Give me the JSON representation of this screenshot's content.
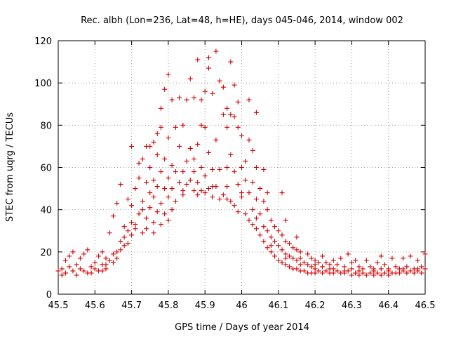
{
  "chart_data": {
    "type": "scatter",
    "title": "Rec. albh (Lon=236, Lat=48, h=HE), days 045-046, 2014, window 002",
    "xlabel": "GPS time / Days of year 2014",
    "ylabel": "STEC from uqrg / TECUs",
    "xlim": [
      45.5,
      46.5
    ],
    "ylim": [
      0,
      120
    ],
    "x_ticks": [
      "45.5",
      "45.6",
      "45.7",
      "45.8",
      "45.9",
      "46",
      "46.1",
      "46.2",
      "46.3",
      "46.4",
      "46.5"
    ],
    "y_ticks": [
      "0",
      "20",
      "40",
      "60",
      "80",
      "100",
      "120"
    ],
    "grid": true,
    "marker": "+",
    "marker_color": "#cc0000",
    "series": [
      {
        "name": "STEC",
        "points": [
          [
            45.5,
            11
          ],
          [
            45.51,
            12
          ],
          [
            45.52,
            10
          ],
          [
            45.52,
            16
          ],
          [
            45.53,
            18
          ],
          [
            45.54,
            11
          ],
          [
            45.54,
            20
          ],
          [
            45.55,
            14
          ],
          [
            45.56,
            17
          ],
          [
            45.57,
            11
          ],
          [
            45.57,
            19
          ],
          [
            45.58,
            21
          ],
          [
            45.59,
            10
          ],
          [
            45.59,
            13
          ],
          [
            45.6,
            15
          ],
          [
            45.61,
            11
          ],
          [
            45.61,
            18
          ],
          [
            45.62,
            14
          ],
          [
            45.62,
            20
          ],
          [
            45.63,
            12
          ],
          [
            45.63,
            17
          ],
          [
            45.64,
            16
          ],
          [
            45.64,
            29
          ],
          [
            45.65,
            19
          ],
          [
            45.65,
            37
          ],
          [
            45.66,
            20
          ],
          [
            45.66,
            43
          ],
          [
            45.67,
            25
          ],
          [
            45.67,
            52
          ],
          [
            45.68,
            23
          ],
          [
            45.68,
            32
          ],
          [
            45.69,
            30
          ],
          [
            45.69,
            45
          ],
          [
            45.7,
            28
          ],
          [
            45.7,
            34
          ],
          [
            45.7,
            42
          ],
          [
            45.7,
            70
          ],
          [
            45.71,
            33
          ],
          [
            45.71,
            50
          ],
          [
            45.72,
            38
          ],
          [
            45.72,
            55
          ],
          [
            45.72,
            62
          ],
          [
            45.73,
            40
          ],
          [
            45.73,
            44
          ],
          [
            45.73,
            64
          ],
          [
            45.74,
            36
          ],
          [
            45.74,
            53
          ],
          [
            45.74,
            70
          ],
          [
            45.75,
            41
          ],
          [
            45.75,
            48
          ],
          [
            45.75,
            60
          ],
          [
            45.75,
            70
          ],
          [
            45.76,
            34
          ],
          [
            45.76,
            46
          ],
          [
            45.76,
            54
          ],
          [
            45.76,
            72
          ],
          [
            45.77,
            39
          ],
          [
            45.77,
            51
          ],
          [
            45.77,
            66
          ],
          [
            45.77,
            76
          ],
          [
            45.78,
            43
          ],
          [
            45.78,
            58
          ],
          [
            45.78,
            79
          ],
          [
            45.78,
            88
          ],
          [
            45.79,
            38
          ],
          [
            45.79,
            50
          ],
          [
            45.79,
            64
          ],
          [
            45.79,
            97
          ],
          [
            45.8,
            46
          ],
          [
            45.8,
            55
          ],
          [
            45.8,
            74
          ],
          [
            45.8,
            104
          ],
          [
            45.81,
            40
          ],
          [
            45.81,
            50
          ],
          [
            45.81,
            61
          ],
          [
            45.81,
            92
          ],
          [
            45.82,
            44
          ],
          [
            45.82,
            58
          ],
          [
            45.82,
            79
          ],
          [
            45.83,
            53
          ],
          [
            45.83,
            70
          ],
          [
            45.83,
            93
          ],
          [
            45.84,
            49
          ],
          [
            45.84,
            58
          ],
          [
            45.84,
            80
          ],
          [
            45.85,
            52
          ],
          [
            45.85,
            63
          ],
          [
            45.85,
            92
          ],
          [
            45.86,
            54
          ],
          [
            45.86,
            69
          ],
          [
            45.86,
            102
          ],
          [
            45.87,
            49
          ],
          [
            45.87,
            58
          ],
          [
            45.87,
            64
          ],
          [
            45.87,
            93
          ],
          [
            45.88,
            53
          ],
          [
            45.88,
            71
          ],
          [
            45.88,
            111
          ],
          [
            45.89,
            49
          ],
          [
            45.89,
            60
          ],
          [
            45.89,
            80
          ],
          [
            45.89,
            92
          ],
          [
            45.9,
            48
          ],
          [
            45.9,
            56
          ],
          [
            45.9,
            79
          ],
          [
            45.9,
            96
          ],
          [
            45.91,
            50
          ],
          [
            45.91,
            67
          ],
          [
            45.91,
            107
          ],
          [
            45.91,
            112
          ],
          [
            45.92,
            46
          ],
          [
            45.92,
            59
          ],
          [
            45.92,
            95
          ],
          [
            45.93,
            51
          ],
          [
            45.93,
            73
          ],
          [
            45.93,
            115
          ],
          [
            45.94,
            45
          ],
          [
            45.94,
            59
          ],
          [
            45.94,
            101
          ],
          [
            45.95,
            47
          ],
          [
            45.95,
            85
          ],
          [
            45.95,
            98
          ],
          [
            45.96,
            45
          ],
          [
            45.96,
            60
          ],
          [
            45.96,
            79
          ],
          [
            45.96,
            88
          ],
          [
            45.97,
            44
          ],
          [
            45.97,
            66
          ],
          [
            45.97,
            85
          ],
          [
            45.97,
            110
          ],
          [
            45.98,
            42
          ],
          [
            45.98,
            58
          ],
          [
            45.98,
            84
          ],
          [
            45.98,
            99
          ],
          [
            45.99,
            39
          ],
          [
            45.99,
            52
          ],
          [
            45.99,
            79
          ],
          [
            45.99,
            91
          ],
          [
            46.0,
            48
          ],
          [
            46.0,
            60
          ],
          [
            46.0,
            75
          ],
          [
            46.01,
            38
          ],
          [
            46.01,
            54
          ],
          [
            46.01,
            63
          ],
          [
            46.02,
            35
          ],
          [
            46.02,
            48
          ],
          [
            46.02,
            73
          ],
          [
            46.02,
            92
          ],
          [
            46.03,
            33
          ],
          [
            46.03,
            40
          ],
          [
            46.03,
            53
          ],
          [
            46.03,
            68
          ],
          [
            46.04,
            31
          ],
          [
            46.04,
            45
          ],
          [
            46.04,
            60
          ],
          [
            46.04,
            86
          ],
          [
            46.05,
            28
          ],
          [
            46.05,
            38
          ],
          [
            46.05,
            50
          ],
          [
            46.06,
            25
          ],
          [
            46.06,
            32
          ],
          [
            46.06,
            44
          ],
          [
            46.06,
            59
          ],
          [
            46.07,
            22
          ],
          [
            46.07,
            30
          ],
          [
            46.07,
            40
          ],
          [
            46.07,
            48
          ],
          [
            46.08,
            20
          ],
          [
            46.08,
            27
          ],
          [
            46.08,
            35
          ],
          [
            46.09,
            18
          ],
          [
            46.09,
            25
          ],
          [
            46.09,
            32
          ],
          [
            46.1,
            16
          ],
          [
            46.1,
            23
          ],
          [
            46.1,
            30
          ],
          [
            46.11,
            15
          ],
          [
            46.11,
            21
          ],
          [
            46.11,
            28
          ],
          [
            46.11,
            48
          ],
          [
            46.12,
            14
          ],
          [
            46.12,
            19
          ],
          [
            46.12,
            25
          ],
          [
            46.12,
            35
          ],
          [
            46.13,
            13
          ],
          [
            46.13,
            18
          ],
          [
            46.13,
            24
          ],
          [
            46.14,
            12
          ],
          [
            46.14,
            17
          ],
          [
            46.14,
            22
          ],
          [
            46.15,
            12
          ],
          [
            46.15,
            16
          ],
          [
            46.15,
            21
          ],
          [
            46.15,
            27
          ],
          [
            46.16,
            11
          ],
          [
            46.16,
            14
          ],
          [
            46.16,
            20
          ],
          [
            46.17,
            11
          ],
          [
            46.17,
            15
          ],
          [
            46.18,
            10
          ],
          [
            46.18,
            14
          ],
          [
            46.18,
            19
          ],
          [
            46.19,
            10
          ],
          [
            46.19,
            13
          ],
          [
            46.19,
            17
          ],
          [
            46.2,
            10
          ],
          [
            46.2,
            12
          ],
          [
            46.2,
            16
          ],
          [
            46.21,
            11
          ],
          [
            46.21,
            15
          ],
          [
            46.22,
            10
          ],
          [
            46.22,
            13
          ],
          [
            46.22,
            18
          ],
          [
            46.23,
            11
          ],
          [
            46.23,
            15
          ],
          [
            46.24,
            10
          ],
          [
            46.24,
            14
          ],
          [
            46.25,
            10
          ],
          [
            46.25,
            12
          ],
          [
            46.25,
            16
          ],
          [
            46.26,
            11
          ],
          [
            46.26,
            14
          ],
          [
            46.27,
            10
          ],
          [
            46.27,
            17
          ],
          [
            46.28,
            10
          ],
          [
            46.28,
            13
          ],
          [
            46.29,
            11
          ],
          [
            46.29,
            19
          ],
          [
            46.3,
            9
          ],
          [
            46.3,
            12
          ],
          [
            46.3,
            15
          ],
          [
            46.31,
            10
          ],
          [
            46.31,
            16
          ],
          [
            46.32,
            9
          ],
          [
            46.32,
            13
          ],
          [
            46.33,
            10
          ],
          [
            46.33,
            12
          ],
          [
            46.34,
            9
          ],
          [
            46.34,
            16
          ],
          [
            46.35,
            10
          ],
          [
            46.35,
            13
          ],
          [
            46.36,
            9
          ],
          [
            46.36,
            11
          ],
          [
            46.37,
            10
          ],
          [
            46.37,
            15
          ],
          [
            46.38,
            9
          ],
          [
            46.38,
            12
          ],
          [
            46.38,
            18
          ],
          [
            46.39,
            10
          ],
          [
            46.39,
            14
          ],
          [
            46.4,
            9
          ],
          [
            46.4,
            12
          ],
          [
            46.41,
            10
          ],
          [
            46.41,
            17
          ],
          [
            46.42,
            10
          ],
          [
            46.42,
            13
          ],
          [
            46.43,
            10
          ],
          [
            46.43,
            12
          ],
          [
            46.44,
            11
          ],
          [
            46.44,
            17
          ],
          [
            46.45,
            10
          ],
          [
            46.45,
            13
          ],
          [
            46.46,
            11
          ],
          [
            46.46,
            18
          ],
          [
            46.47,
            10
          ],
          [
            46.47,
            12
          ],
          [
            46.48,
            11
          ],
          [
            46.48,
            16
          ],
          [
            46.49,
            10
          ],
          [
            46.49,
            13
          ],
          [
            46.5,
            12
          ],
          [
            46.5,
            19
          ],
          [
            45.51,
            9
          ],
          [
            45.53,
            13
          ],
          [
            45.55,
            9
          ],
          [
            45.56,
            12
          ],
          [
            45.58,
            10
          ],
          [
            45.6,
            12
          ],
          [
            45.62,
            11
          ],
          [
            45.63,
            14
          ],
          [
            45.65,
            15
          ],
          [
            45.66,
            17
          ],
          [
            45.67,
            21
          ],
          [
            45.68,
            27
          ],
          [
            45.69,
            24
          ],
          [
            45.71,
            31
          ],
          [
            45.73,
            29
          ],
          [
            45.74,
            31
          ],
          [
            45.76,
            29
          ],
          [
            45.78,
            33
          ],
          [
            45.8,
            35
          ],
          [
            45.84,
            47
          ],
          [
            45.88,
            47
          ],
          [
            45.92,
            51
          ],
          [
            45.96,
            51
          ],
          [
            46.0,
            46
          ],
          [
            46.04,
            36
          ],
          [
            46.08,
            23
          ],
          [
            46.12,
            17
          ],
          [
            46.16,
            17
          ],
          [
            46.2,
            14
          ],
          [
            46.24,
            12
          ],
          [
            46.28,
            11
          ],
          [
            46.32,
            11
          ],
          [
            46.36,
            12
          ],
          [
            46.4,
            11
          ],
          [
            46.44,
            12
          ],
          [
            46.48,
            12
          ]
        ]
      }
    ]
  }
}
